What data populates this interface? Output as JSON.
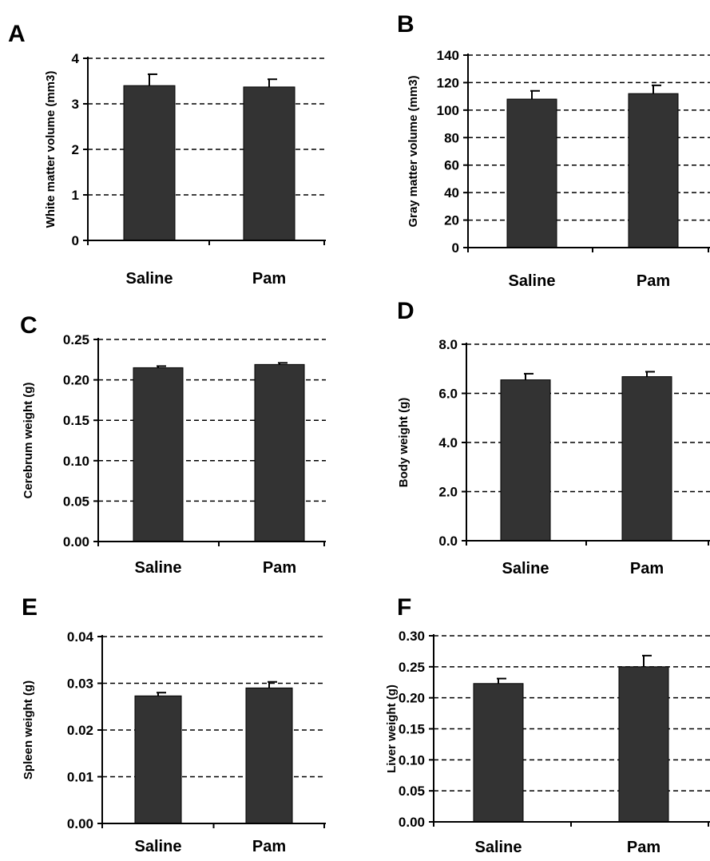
{
  "colors": {
    "bar": "#333333",
    "axis": "#000000",
    "grid": "#000000",
    "background": "#ffffff"
  },
  "chart_data": [
    {
      "panel": "A",
      "type": "bar",
      "categories": [
        "Saline",
        "Pam"
      ],
      "values": [
        3.4,
        3.37
      ],
      "errors": [
        0.25,
        0.17
      ],
      "ylabel": "White matter volume (mm3)",
      "ylim": [
        0,
        4
      ],
      "yticks": [
        "0",
        "1",
        "2",
        "3",
        "4"
      ],
      "grid": "dashed-horizontal"
    },
    {
      "panel": "B",
      "type": "bar",
      "categories": [
        "Saline",
        "Pam"
      ],
      "values": [
        108,
        112
      ],
      "errors": [
        6,
        6
      ],
      "ylabel": "Gray matter volume (mm3)",
      "ylim": [
        0,
        140
      ],
      "yticks": [
        "0",
        "20",
        "40",
        "60",
        "80",
        "100",
        "120",
        "140"
      ],
      "grid": "dashed-horizontal"
    },
    {
      "panel": "C",
      "type": "bar",
      "categories": [
        "Saline",
        "Pam"
      ],
      "values": [
        0.215,
        0.219
      ],
      "errors": [
        0.002,
        0.002
      ],
      "ylabel": "Cerebrum weight (g)",
      "ylim": [
        0,
        0.25
      ],
      "yticks": [
        "0.00",
        "0.05",
        "0.10",
        "0.15",
        "0.20",
        "0.25"
      ],
      "grid": "dashed-horizontal"
    },
    {
      "panel": "D",
      "type": "bar",
      "categories": [
        "Saline",
        "Pam"
      ],
      "values": [
        6.55,
        6.68
      ],
      "errors": [
        0.25,
        0.2
      ],
      "ylabel": "Body weight (g)",
      "ylim": [
        0,
        8
      ],
      "yticks": [
        "0.0",
        "2.0",
        "4.0",
        "6.0",
        "8.0"
      ],
      "grid": "dashed-horizontal"
    },
    {
      "panel": "E",
      "type": "bar",
      "categories": [
        "Saline",
        "Pam"
      ],
      "values": [
        0.0273,
        0.029
      ],
      "errors": [
        0.0007,
        0.0013
      ],
      "ylabel": "Spleen weight (g)",
      "ylim": [
        0,
        0.04
      ],
      "yticks": [
        "0.00",
        "0.01",
        "0.02",
        "0.03",
        "0.04"
      ],
      "grid": "dashed-horizontal"
    },
    {
      "panel": "F",
      "type": "bar",
      "categories": [
        "Saline",
        "Pam"
      ],
      "values": [
        0.223,
        0.25
      ],
      "errors": [
        0.008,
        0.018
      ],
      "ylabel": "Liver weight (g)",
      "ylim": [
        0,
        0.3
      ],
      "yticks": [
        "0.00",
        "0.05",
        "0.10",
        "0.15",
        "0.20",
        "0.25",
        "0.30"
      ],
      "grid": "dashed-horizontal"
    }
  ]
}
